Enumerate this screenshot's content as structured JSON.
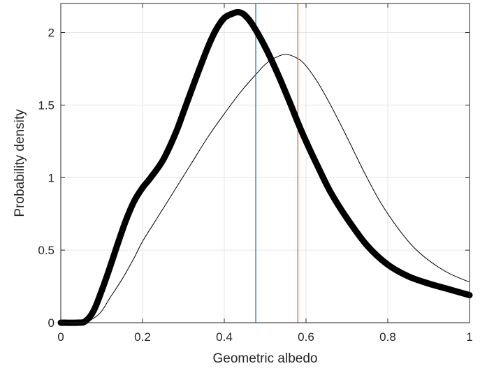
{
  "chart_data": {
    "type": "line",
    "title": "",
    "xlabel": "Geometric albedo",
    "ylabel": "Probability density",
    "xlim": [
      0,
      1
    ],
    "ylim": [
      0,
      2.2
    ],
    "grid": true,
    "x_ticks": [
      0,
      0.2,
      0.4,
      0.6,
      0.8,
      1
    ],
    "x_tick_labels": [
      "0",
      "0.2",
      "0.4",
      "0.6",
      "0.8",
      "1"
    ],
    "y_ticks": [
      0,
      0.5,
      1,
      1.5,
      2
    ],
    "y_tick_labels": [
      "0",
      "0.5",
      "1",
      "1.5",
      "2"
    ],
    "series": [
      {
        "style": "thick",
        "color": "#000000",
        "x": [
          0,
          0.04,
          0.06,
          0.08,
          0.1,
          0.12,
          0.14,
          0.16,
          0.18,
          0.2,
          0.22,
          0.25,
          0.28,
          0.3,
          0.33,
          0.36,
          0.38,
          0.4,
          0.42,
          0.435,
          0.45,
          0.47,
          0.5,
          0.53,
          0.56,
          0.58,
          0.6,
          0.63,
          0.66,
          0.7,
          0.75,
          0.8,
          0.85,
          0.9,
          0.95,
          1.0
        ],
        "y": [
          0,
          0,
          0.01,
          0.08,
          0.22,
          0.38,
          0.55,
          0.71,
          0.84,
          0.93,
          1.0,
          1.12,
          1.3,
          1.45,
          1.68,
          1.9,
          2.02,
          2.1,
          2.13,
          2.14,
          2.12,
          2.05,
          1.9,
          1.72,
          1.52,
          1.38,
          1.25,
          1.07,
          0.9,
          0.72,
          0.53,
          0.4,
          0.32,
          0.27,
          0.23,
          0.19
        ]
      },
      {
        "style": "thin",
        "color": "#000000",
        "x": [
          0,
          0.04,
          0.06,
          0.08,
          0.1,
          0.12,
          0.15,
          0.18,
          0.2,
          0.24,
          0.28,
          0.32,
          0.36,
          0.4,
          0.44,
          0.48,
          0.5,
          0.52,
          0.55,
          0.58,
          0.6,
          0.63,
          0.66,
          0.7,
          0.74,
          0.78,
          0.82,
          0.86,
          0.9,
          0.95,
          1.0
        ],
        "y": [
          0,
          0,
          0.005,
          0.03,
          0.08,
          0.17,
          0.3,
          0.45,
          0.56,
          0.74,
          0.92,
          1.1,
          1.28,
          1.44,
          1.59,
          1.72,
          1.78,
          1.82,
          1.85,
          1.82,
          1.77,
          1.65,
          1.5,
          1.28,
          1.05,
          0.84,
          0.67,
          0.53,
          0.43,
          0.34,
          0.28
        ]
      }
    ],
    "vlines": [
      {
        "x": 0.477,
        "color": "#0072BD"
      },
      {
        "x": 0.58,
        "color": "#D95319"
      }
    ]
  }
}
